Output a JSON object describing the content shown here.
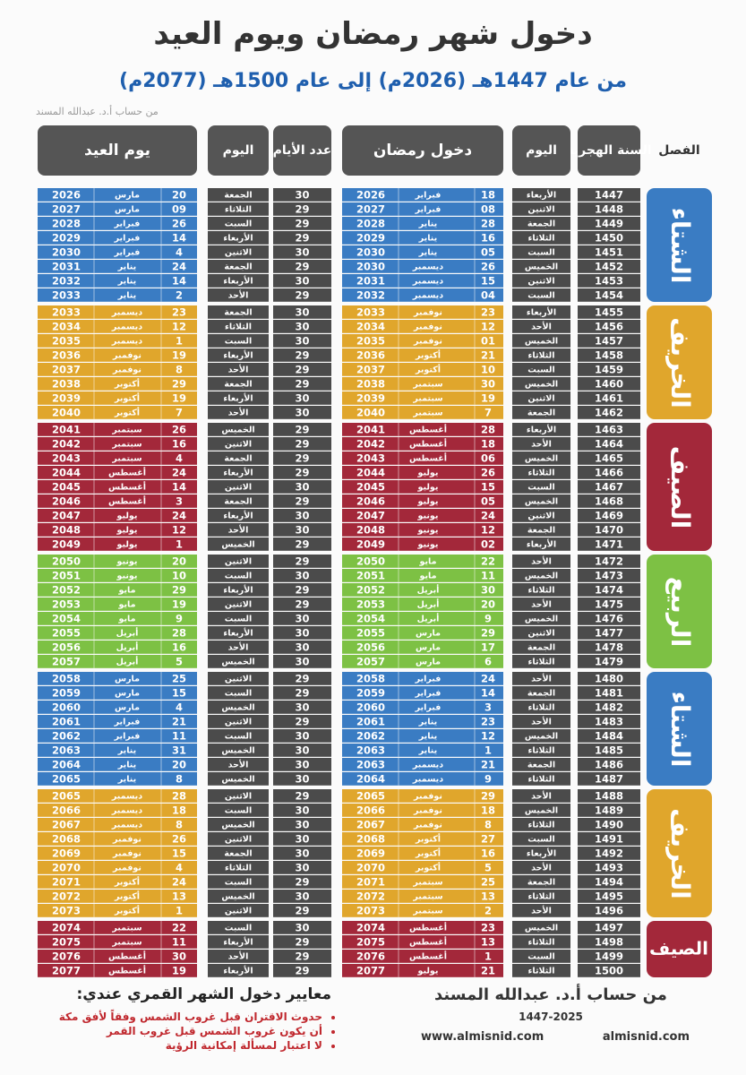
{
  "header": {
    "title": "دخول شهر رمضان ويوم العيد",
    "subtitle": "من عام 1447هـ (2026م) إلى عام 1500هـ (2077م)",
    "author": "من حساب أ.د. عبدالله المسند"
  },
  "table": {
    "columns": [
      "الفصل",
      "السنة الهجرية",
      "اليوم",
      "دخول رمضان",
      "عدد الأيام",
      "اليوم",
      "يوم العيد"
    ],
    "seasons": [
      {
        "label": "الشتاء",
        "color": "#3a7cc3",
        "rows": [
          [
            "1447",
            "الأربعاء",
            "18",
            "فبراير",
            "2026",
            "30",
            "الجمعة",
            "20",
            "مارس",
            "2026"
          ],
          [
            "1448",
            "الاثنين",
            "08",
            "فبراير",
            "2027",
            "29",
            "الثلاثاء",
            "09",
            "مارس",
            "2027"
          ],
          [
            "1449",
            "الجمعة",
            "28",
            "يناير",
            "2028",
            "29",
            "السبت",
            "26",
            "فبراير",
            "2028"
          ],
          [
            "1450",
            "الثلاثاء",
            "16",
            "يناير",
            "2029",
            "29",
            "الأربعاء",
            "14",
            "فبراير",
            "2029"
          ],
          [
            "1451",
            "السبت",
            "05",
            "يناير",
            "2030",
            "30",
            "الاثنين",
            "4",
            "فبراير",
            "2030"
          ],
          [
            "1452",
            "الخميس",
            "26",
            "ديسمبر",
            "2030",
            "29",
            "الجمعة",
            "24",
            "يناير",
            "2031"
          ],
          [
            "1453",
            "الاثنين",
            "15",
            "ديسمبر",
            "2031",
            "30",
            "الأربعاء",
            "14",
            "يناير",
            "2032"
          ],
          [
            "1454",
            "السبت",
            "04",
            "ديسمبر",
            "2032",
            "29",
            "الأحد",
            "2",
            "يناير",
            "2033"
          ]
        ]
      },
      {
        "label": "الخريف",
        "color": "#e0a62c",
        "rows": [
          [
            "1455",
            "الأربعاء",
            "23",
            "نوفمبر",
            "2033",
            "30",
            "الجمعة",
            "23",
            "ديسمبر",
            "2033"
          ],
          [
            "1456",
            "الأحد",
            "12",
            "نوفمبر",
            "2034",
            "30",
            "الثلاثاء",
            "12",
            "ديسمبر",
            "2034"
          ],
          [
            "1457",
            "الخميس",
            "01",
            "نوفمبر",
            "2035",
            "30",
            "السبت",
            "1",
            "ديسمبر",
            "2035"
          ],
          [
            "1458",
            "الثلاثاء",
            "21",
            "أكتوبر",
            "2036",
            "29",
            "الأربعاء",
            "19",
            "نوفمبر",
            "2036"
          ],
          [
            "1459",
            "السبت",
            "10",
            "أكتوبر",
            "2037",
            "29",
            "الأحد",
            "8",
            "نوفمبر",
            "2037"
          ],
          [
            "1460",
            "الخميس",
            "30",
            "سبتمبر",
            "2038",
            "29",
            "الجمعة",
            "29",
            "أكتوبر",
            "2038"
          ],
          [
            "1461",
            "الاثنين",
            "19",
            "سبتمبر",
            "2039",
            "30",
            "الأربعاء",
            "19",
            "أكتوبر",
            "2039"
          ],
          [
            "1462",
            "الجمعة",
            "7",
            "سبتمبر",
            "2040",
            "30",
            "الأحد",
            "7",
            "أكتوبر",
            "2040"
          ]
        ]
      },
      {
        "label": "الصيف",
        "color": "#a3283a",
        "rows": [
          [
            "1463",
            "الأربعاء",
            "28",
            "أغسطس",
            "2041",
            "29",
            "الخميس",
            "26",
            "سبتمبر",
            "2041"
          ],
          [
            "1464",
            "الأحد",
            "18",
            "أغسطس",
            "2042",
            "29",
            "الاثنين",
            "16",
            "سبتمبر",
            "2042"
          ],
          [
            "1465",
            "الخميس",
            "06",
            "أغسطس",
            "2043",
            "29",
            "الجمعة",
            "4",
            "سبتمبر",
            "2043"
          ],
          [
            "1466",
            "الثلاثاء",
            "26",
            "يوليو",
            "2044",
            "29",
            "الأربعاء",
            "24",
            "أغسطس",
            "2044"
          ],
          [
            "1467",
            "السبت",
            "15",
            "يوليو",
            "2045",
            "30",
            "الاثنين",
            "14",
            "أغسطس",
            "2045"
          ],
          [
            "1468",
            "الخميس",
            "05",
            "يوليو",
            "2046",
            "29",
            "الجمعة",
            "3",
            "أغسطس",
            "2046"
          ],
          [
            "1469",
            "الاثنين",
            "24",
            "يونيو",
            "2047",
            "30",
            "الأربعاء",
            "24",
            "يوليو",
            "2047"
          ],
          [
            "1470",
            "الجمعة",
            "12",
            "يونيو",
            "2048",
            "30",
            "الأحد",
            "12",
            "يوليو",
            "2048"
          ],
          [
            "1471",
            "الأربعاء",
            "02",
            "يونيو",
            "2049",
            "29",
            "الخميس",
            "1",
            "يوليو",
            "2049"
          ]
        ]
      },
      {
        "label": "الربيع",
        "color": "#7dc144",
        "rows": [
          [
            "1472",
            "الأحد",
            "22",
            "مايو",
            "2050",
            "29",
            "الاثنين",
            "20",
            "يونيو",
            "2050"
          ],
          [
            "1473",
            "الخميس",
            "11",
            "مايو",
            "2051",
            "30",
            "السبت",
            "10",
            "يونيو",
            "2051"
          ],
          [
            "1474",
            "الثلاثاء",
            "30",
            "أبريل",
            "2052",
            "29",
            "الأربعاء",
            "29",
            "مايو",
            "2052"
          ],
          [
            "1475",
            "الأحد",
            "20",
            "أبريل",
            "2053",
            "29",
            "الاثنين",
            "19",
            "مايو",
            "2053"
          ],
          [
            "1476",
            "الخميس",
            "9",
            "أبريل",
            "2054",
            "30",
            "السبت",
            "9",
            "مايو",
            "2054"
          ],
          [
            "1477",
            "الاثنين",
            "29",
            "مارس",
            "2055",
            "30",
            "الأربعاء",
            "28",
            "أبريل",
            "2055"
          ],
          [
            "1478",
            "الجمعة",
            "17",
            "مارس",
            "2056",
            "30",
            "الأحد",
            "16",
            "أبريل",
            "2056"
          ],
          [
            "1479",
            "الثلاثاء",
            "6",
            "مارس",
            "2057",
            "30",
            "الخميس",
            "5",
            "أبريل",
            "2057"
          ]
        ]
      },
      {
        "label": "الشتاء",
        "color": "#3a7cc3",
        "rows": [
          [
            "1480",
            "الأحد",
            "24",
            "فبراير",
            "2058",
            "29",
            "الاثنين",
            "25",
            "مارس",
            "2058"
          ],
          [
            "1481",
            "الجمعة",
            "14",
            "فبراير",
            "2059",
            "29",
            "السبت",
            "15",
            "مارس",
            "2059"
          ],
          [
            "1482",
            "الثلاثاء",
            "3",
            "فبراير",
            "2060",
            "30",
            "الخميس",
            "4",
            "مارس",
            "2060"
          ],
          [
            "1483",
            "الأحد",
            "23",
            "يناير",
            "2061",
            "29",
            "الاثنين",
            "21",
            "فبراير",
            "2061"
          ],
          [
            "1484",
            "الخميس",
            "12",
            "يناير",
            "2062",
            "30",
            "السبت",
            "11",
            "فبراير",
            "2062"
          ],
          [
            "1485",
            "الثلاثاء",
            "1",
            "يناير",
            "2063",
            "30",
            "الخميس",
            "31",
            "يناير",
            "2063"
          ],
          [
            "1486",
            "الجمعة",
            "21",
            "ديسمبر",
            "2063",
            "30",
            "الأحد",
            "20",
            "يناير",
            "2064"
          ],
          [
            "1487",
            "الثلاثاء",
            "9",
            "ديسمبر",
            "2064",
            "30",
            "الخميس",
            "8",
            "يناير",
            "2065"
          ]
        ]
      },
      {
        "label": "الخريف",
        "color": "#e0a62c",
        "rows": [
          [
            "1488",
            "الأحد",
            "29",
            "نوفمبر",
            "2065",
            "29",
            "الاثنين",
            "28",
            "ديسمبر",
            "2065"
          ],
          [
            "1489",
            "الخميس",
            "18",
            "نوفمبر",
            "2066",
            "30",
            "السبت",
            "18",
            "ديسمبر",
            "2066"
          ],
          [
            "1490",
            "الثلاثاء",
            "8",
            "نوفمبر",
            "2067",
            "30",
            "الخميس",
            "8",
            "ديسمبر",
            "2067"
          ],
          [
            "1491",
            "السبت",
            "27",
            "أكتوبر",
            "2068",
            "30",
            "الاثنين",
            "26",
            "نوفمبر",
            "2068"
          ],
          [
            "1492",
            "الأربعاء",
            "16",
            "أكتوبر",
            "2069",
            "30",
            "الجمعة",
            "15",
            "نوفمبر",
            "2069"
          ],
          [
            "1493",
            "الأحد",
            "5",
            "أكتوبر",
            "2070",
            "30",
            "الثلاثاء",
            "4",
            "نوفمبر",
            "2070"
          ],
          [
            "1494",
            "الجمعة",
            "25",
            "سبتمبر",
            "2071",
            "29",
            "السبت",
            "24",
            "أكتوبر",
            "2071"
          ],
          [
            "1495",
            "الثلاثاء",
            "13",
            "سبتمبر",
            "2072",
            "30",
            "الخميس",
            "13",
            "أكتوبر",
            "2072"
          ],
          [
            "1496",
            "الأحد",
            "2",
            "سبتمبر",
            "2073",
            "29",
            "الاثنين",
            "1",
            "أكتوبر",
            "2073"
          ]
        ]
      },
      {
        "label": "الصيف",
        "color": "#a3283a",
        "rows": [
          [
            "1497",
            "الخميس",
            "23",
            "أغسطس",
            "2074",
            "30",
            "السبت",
            "22",
            "سبتمبر",
            "2074"
          ],
          [
            "1498",
            "الثلاثاء",
            "13",
            "أغسطس",
            "2075",
            "29",
            "الأربعاء",
            "11",
            "سبتمبر",
            "2075"
          ],
          [
            "1499",
            "السبت",
            "1",
            "أغسطس",
            "2076",
            "29",
            "الأحد",
            "30",
            "أغسطس",
            "2076"
          ],
          [
            "1500",
            "الثلاثاء",
            "21",
            "يوليو",
            "2077",
            "29",
            "الأربعاء",
            "19",
            "أغسطس",
            "2077"
          ]
        ]
      }
    ]
  },
  "footer": {
    "criteria_title": "معايير دخول الشهر القمري عندي:",
    "criteria": [
      "حدوث الاقتران قبل غروب الشمس وفقاً لأفق مكة",
      "أن يكون غروب الشمس قبل غروب القمر",
      "لا اعتبار لمسألة إمكانية الرؤية"
    ],
    "author": "من حساب أ.د. عبدالله المسند",
    "date": "1447-2025",
    "website": "www.almisnid.com",
    "handle": "almisnid.com"
  }
}
